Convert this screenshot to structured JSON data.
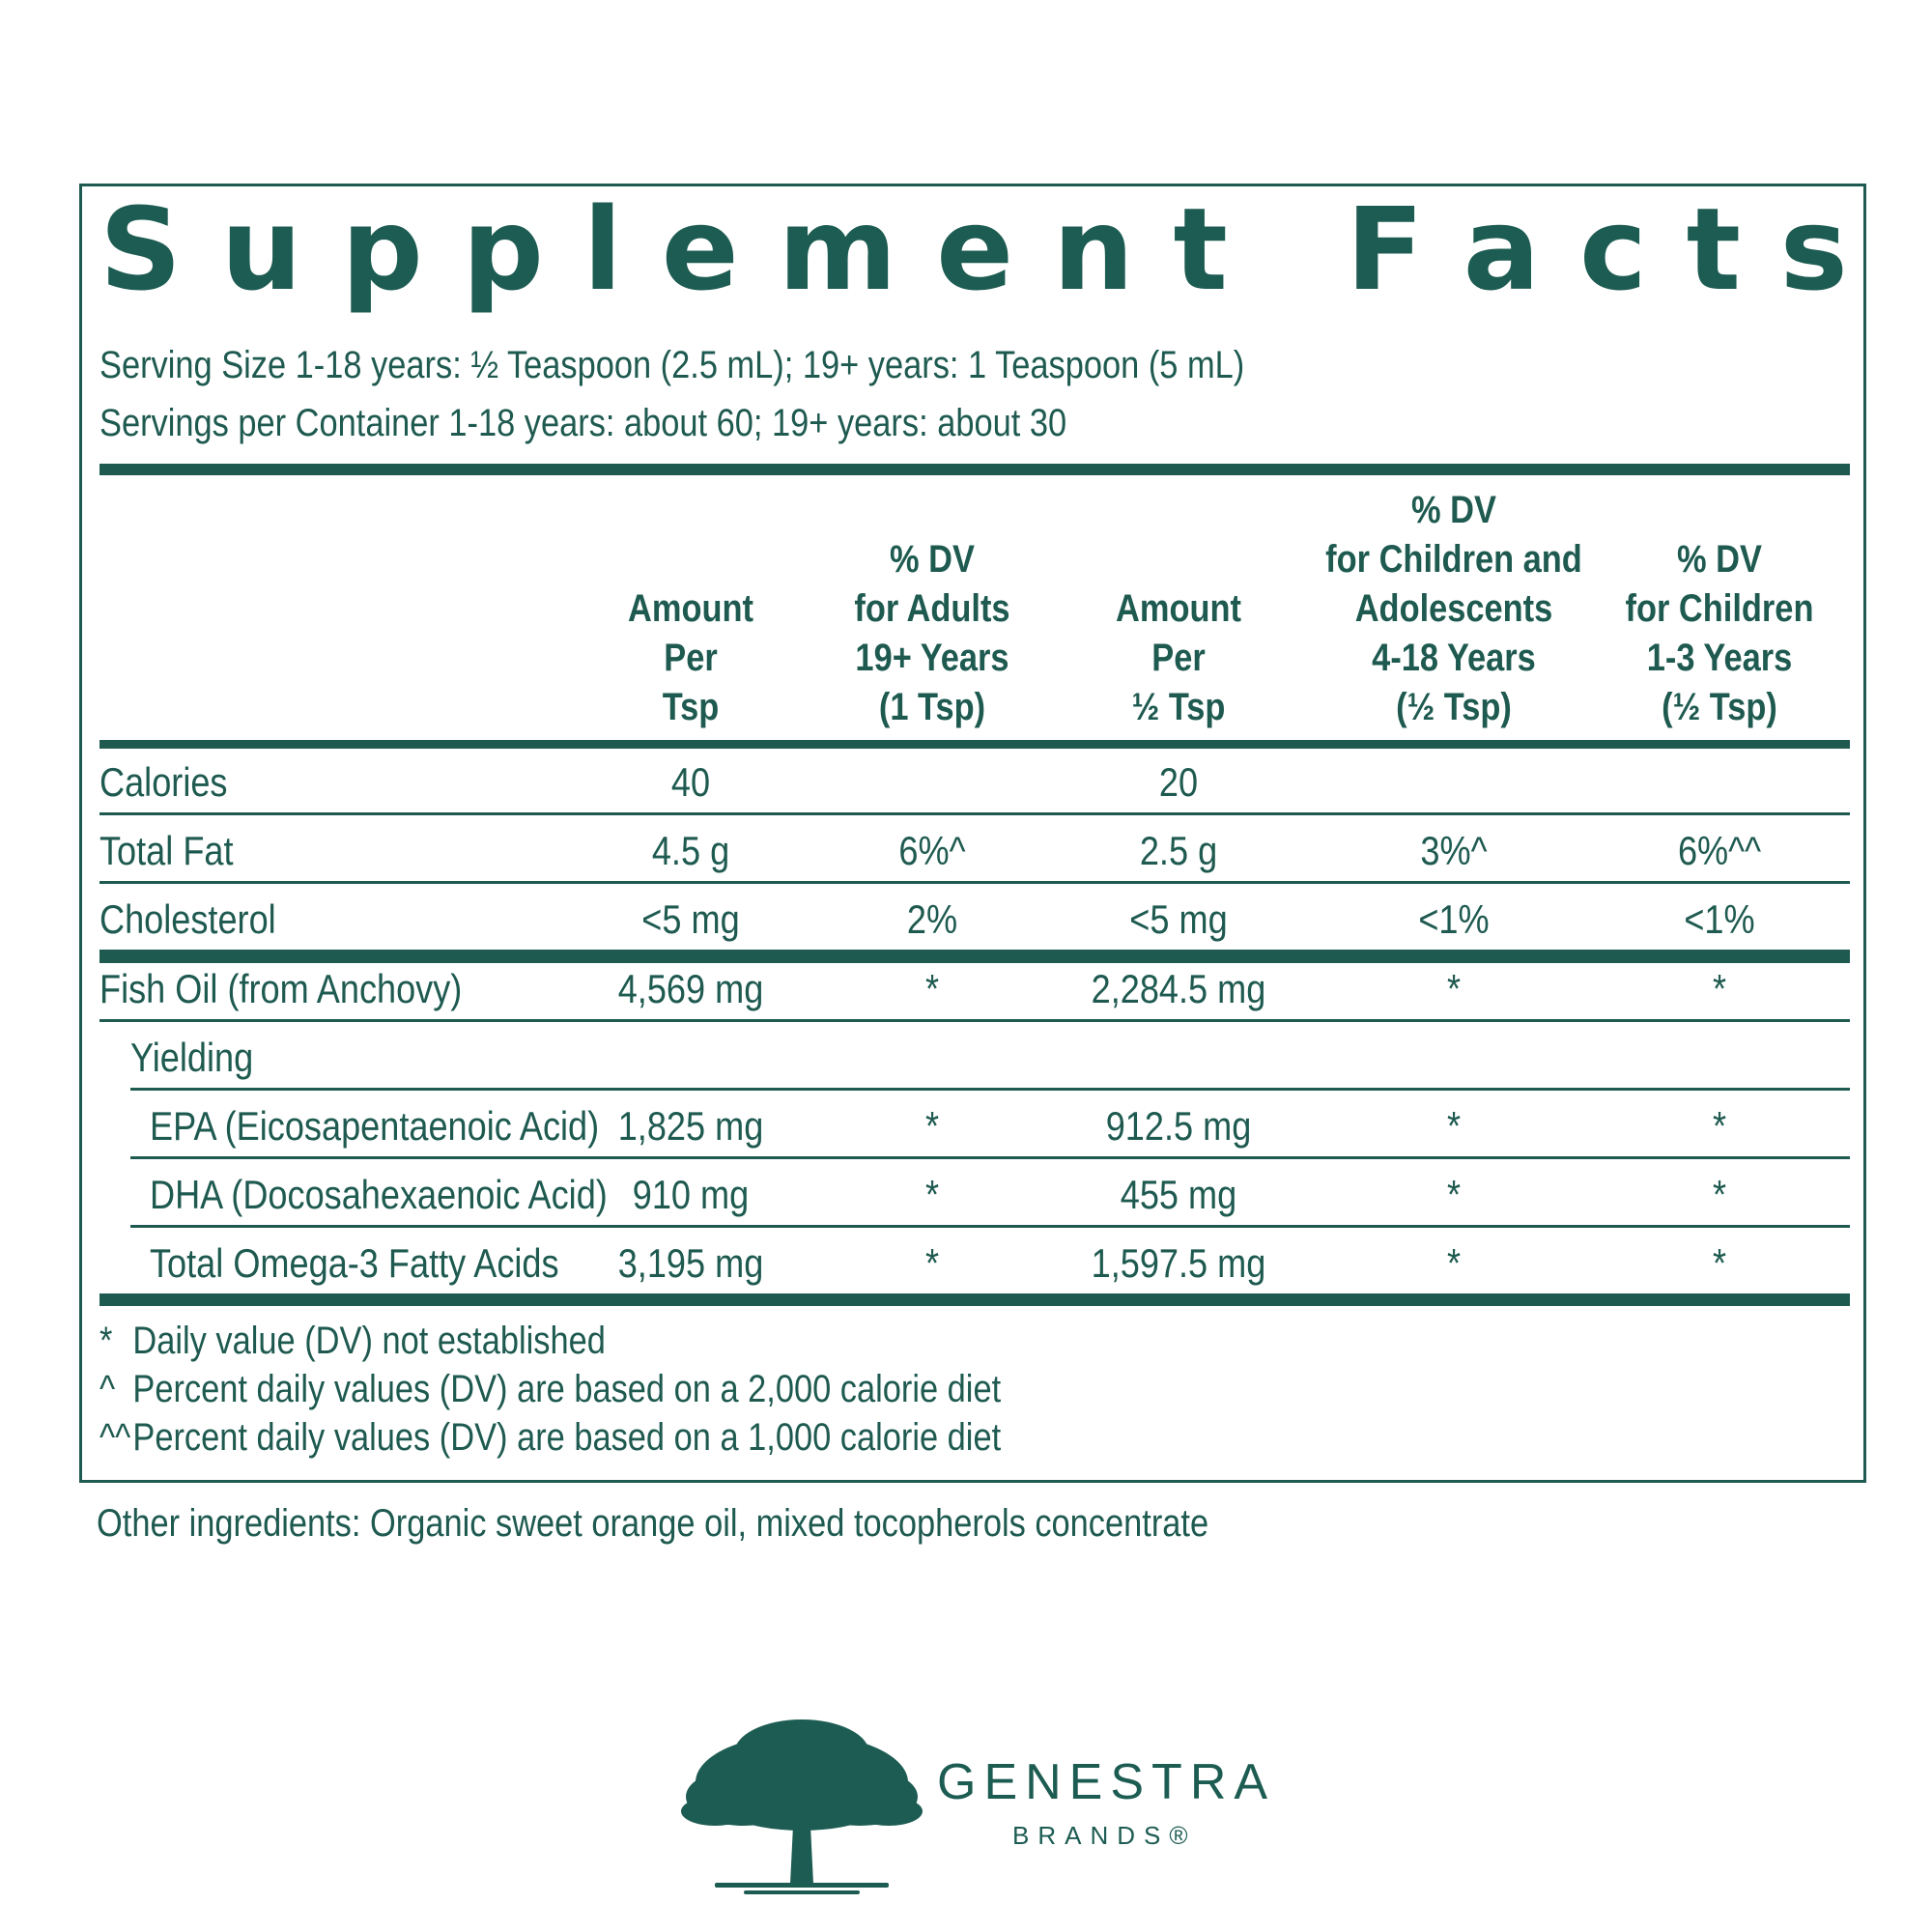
{
  "title_letters": [
    "S",
    "u",
    "p",
    "p",
    "l",
    "e",
    "m",
    "e",
    "n",
    "t",
    " ",
    "F",
    "a",
    "c",
    "t",
    "s"
  ],
  "serving_size": "Serving Size 1-18 years: ½  Teaspoon (2.5 mL); 19+ years: 1 Teaspoon (5 mL)",
  "servings_per_container": "Servings per Container 1-18 years: about 60; 19+ years: about 30",
  "headers": [
    {
      "lines": [
        "Amount",
        "Per",
        "Tsp"
      ]
    },
    {
      "lines": [
        "% DV",
        "for Adults",
        "19+ Years",
        "(1 Tsp)"
      ]
    },
    {
      "lines": [
        "Amount",
        "Per",
        "½ Tsp"
      ]
    },
    {
      "lines": [
        "% DV",
        "for Children and",
        "Adolescents",
        "4-18 Years",
        "(½ Tsp)"
      ]
    },
    {
      "lines": [
        "% DV",
        "for Children",
        "1-3 Years",
        "(½ Tsp)"
      ]
    }
  ],
  "rows": [
    {
      "name": "Calories",
      "values": [
        "40",
        "",
        "20",
        "",
        ""
      ]
    },
    {
      "name": "Total Fat",
      "values": [
        "4.5 g",
        "6%^",
        "2.5 g",
        "3%^",
        "6%^^"
      ]
    },
    {
      "name": "Cholesterol",
      "values": [
        "<5 mg",
        "2%",
        "<5 mg",
        "<1%",
        "<1%"
      ]
    },
    {
      "name": "Fish Oil (from Anchovy)",
      "values": [
        "4,569 mg",
        "*",
        "2,284.5 mg",
        "*",
        "*"
      ]
    },
    {
      "name": "Yielding",
      "values": [
        "",
        "",
        "",
        "",
        ""
      ]
    },
    {
      "name": "EPA (Eicosapentaenoic Acid)",
      "values": [
        "1,825 mg",
        "*",
        "912.5 mg",
        "*",
        "*"
      ]
    },
    {
      "name": "DHA (Docosahexaenoic Acid)",
      "values": [
        "910 mg",
        "*",
        "455 mg",
        "*",
        "*"
      ]
    },
    {
      "name": "Total Omega-3 Fatty Acids",
      "values": [
        "3,195 mg",
        "*",
        "1,597.5 mg",
        "*",
        "*"
      ]
    }
  ],
  "footnotes": [
    {
      "symbol": "*",
      "text": "Daily value (DV) not established"
    },
    {
      "symbol": "^",
      "text": "Percent daily values (DV) are based on a 2,000 calorie diet"
    },
    {
      "symbol": "^^",
      "text": "Percent daily values (DV) are based on a 1,000 calorie diet"
    }
  ],
  "other_ingredients": "Other ingredients: Organic sweet orange oil, mixed tocopherols concentrate",
  "brand": {
    "name": "GENESTRA",
    "sub": "BRANDS®"
  },
  "colors": {
    "primary": "#1e5a50"
  }
}
